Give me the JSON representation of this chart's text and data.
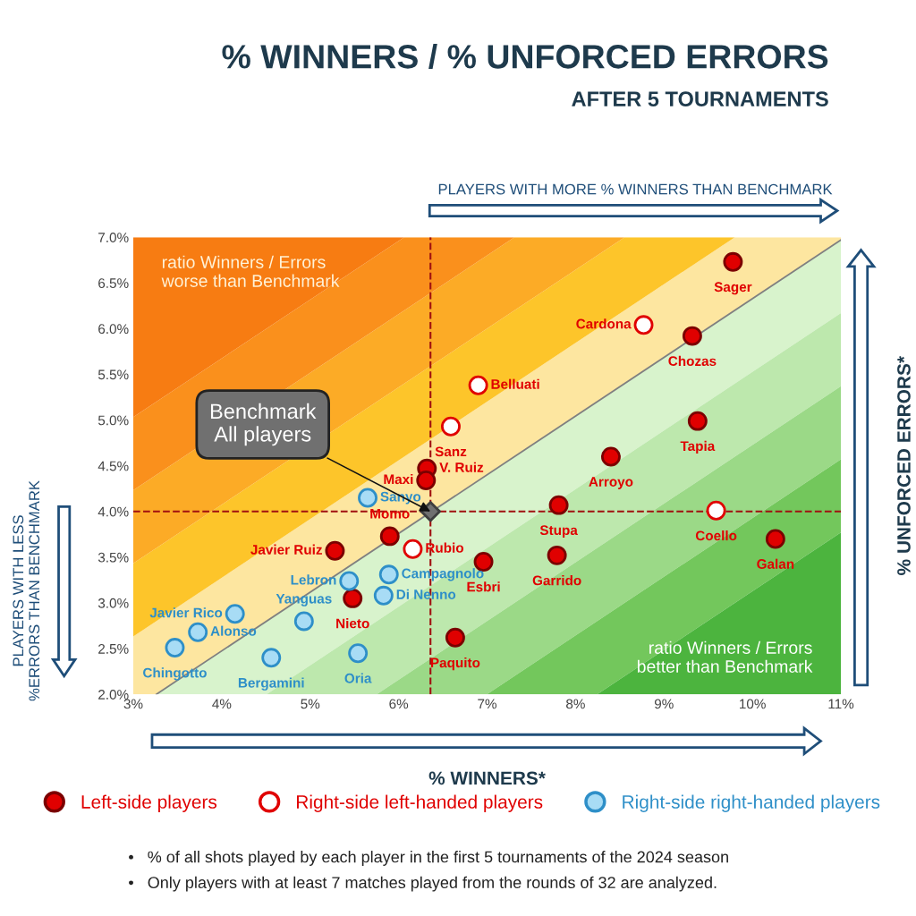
{
  "chart_data": {
    "type": "scatter",
    "title": "% WINNERS / % UNFORCED ERRORS",
    "subtitle": "AFTER 5 TOURNAMENTS",
    "xlabel": "% WINNERS*",
    "ylabel": "% UNFORCED ERRORS*",
    "xlim": [
      3,
      11
    ],
    "ylim": [
      2.0,
      7.0
    ],
    "xticks": [
      {
        "value": 3,
        "label": "3%"
      },
      {
        "value": 4,
        "label": "4%"
      },
      {
        "value": 5,
        "label": "5%"
      },
      {
        "value": 6,
        "label": "6%"
      },
      {
        "value": 7,
        "label": "7%"
      },
      {
        "value": 8,
        "label": "8%"
      },
      {
        "value": 9,
        "label": "9%"
      },
      {
        "value": 10,
        "label": "10%"
      },
      {
        "value": 11,
        "label": "11%"
      }
    ],
    "yticks": [
      {
        "value": 2.0,
        "label": "2.0%"
      },
      {
        "value": 2.5,
        "label": "2.5%"
      },
      {
        "value": 3.0,
        "label": "3.0%"
      },
      {
        "value": 3.5,
        "label": "3.5%"
      },
      {
        "value": 4.0,
        "label": "4.0%"
      },
      {
        "value": 4.5,
        "label": "4.5%"
      },
      {
        "value": 5.0,
        "label": "5.0%"
      },
      {
        "value": 5.5,
        "label": "5.5%"
      },
      {
        "value": 6.0,
        "label": "6.0%"
      },
      {
        "value": 6.5,
        "label": "6.5%"
      },
      {
        "value": 7.0,
        "label": "7.0%"
      }
    ],
    "grid": false,
    "legend": "bottom",
    "ref_lines": [
      {
        "axis": "x",
        "value": 6.36,
        "color": "#a01010",
        "line_style": "dashed"
      },
      {
        "axis": "y",
        "value": 4.0,
        "color": "#a01010",
        "line_style": "dashed"
      }
    ],
    "series": [
      {
        "type": "line",
        "color": "#808080",
        "x": [
          3.26,
          11
        ],
        "values": [
          2.0,
          6.97
        ]
      },
      {
        "name": "Left-side players",
        "marker": "circle",
        "color": "#e00000",
        "x": [
          9.78,
          9.32,
          9.38,
          8.4,
          6.32,
          6.31,
          7.81,
          10.26,
          5.9,
          5.28,
          6.96,
          7.79,
          5.48,
          6.64
        ],
        "values": [
          6.73,
          5.92,
          4.99,
          4.6,
          4.47,
          4.34,
          4.07,
          3.7,
          3.73,
          3.57,
          3.45,
          3.52,
          3.05,
          2.62
        ],
        "value_labels": [
          "Sager",
          "Chozas",
          "Tapia",
          "Arroyo",
          "V. Ruiz",
          "Maxi",
          "Stupa",
          "Galan",
          "Momo",
          "Javier Ruiz",
          "Esbri",
          "Garrido",
          "Nieto",
          "Paquito"
        ]
      },
      {
        "name": "Right-side left-handed players",
        "marker": "circle",
        "color": "#e00000",
        "colors": [
          "#ffffff",
          "#ffffff",
          "#ffffff",
          "#ffffff",
          "#ffffff"
        ],
        "x": [
          8.77,
          6.9,
          6.59,
          9.59,
          6.16
        ],
        "values": [
          6.04,
          5.38,
          4.93,
          4.01,
          3.59
        ],
        "value_labels": [
          "Cardona",
          "Belluati",
          "Sanz",
          "Coello",
          "Rubio"
        ]
      },
      {
        "name": "Right-side right-handed players",
        "marker": "circle",
        "color": "#2e8fc8",
        "colors": [
          "#a8dcf5",
          "#a8dcf5",
          "#a8dcf5",
          "#a8dcf5",
          "#a8dcf5",
          "#a8dcf5",
          "#a8dcf5",
          "#a8dcf5",
          "#a8dcf5",
          "#a8dcf5"
        ],
        "x": [
          5.65,
          5.44,
          5.89,
          5.83,
          4.15,
          4.93,
          3.73,
          3.47,
          4.56,
          5.54
        ],
        "values": [
          4.15,
          3.24,
          3.31,
          3.08,
          2.88,
          2.8,
          2.68,
          2.51,
          2.4,
          2.45
        ],
        "value_labels": [
          "Sanyo",
          "Lebron",
          "Campagnolo",
          "Di Nenno",
          "Javier Rico",
          "Yanguas",
          "Alonso",
          "Chingotto",
          "Bergamini",
          "Oria"
        ]
      },
      {
        "type": "scatter",
        "marker": "diamond",
        "color": "#707070",
        "x": [
          6.36
        ],
        "values": [
          4.0
        ]
      }
    ],
    "annotations": [
      {
        "text": "Benchmark\nAll players",
        "x": 6.36,
        "y": 4.0
      },
      "ratio Winners / Errors\nworse than Benchmark",
      "ratio Winners / Errors\nbetter than Benchmark",
      "PLAYERS WITH MORE % WINNERS THAN BENCHMARK",
      "PLAYERS WITH LESS\n%ERRORS THAN BENCHMARK",
      "•   % of all shots played by each player in the first 5 tournaments of the 2024 season",
      "•   Only players with at least 7 matches played from the rounds of 32 are analyzed."
    ]
  }
}
